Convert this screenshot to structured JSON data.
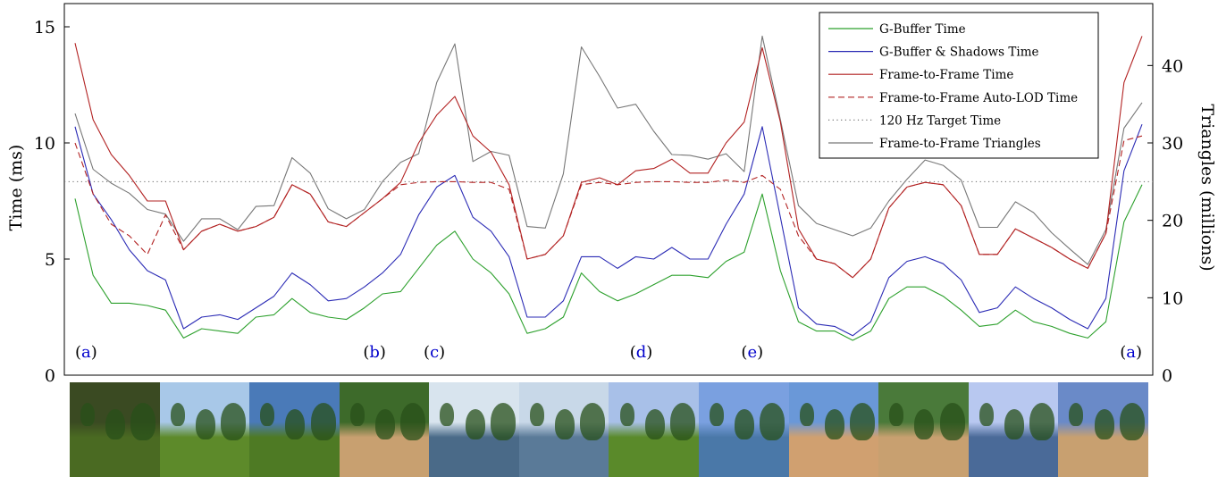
{
  "chart_data": {
    "type": "line",
    "xlabel": "",
    "ylabel": "Time (ms)",
    "y2label": "Triangles (millions)",
    "ylim": [
      0,
      16
    ],
    "y2lim": [
      0,
      48
    ],
    "yticks": [
      0,
      5,
      10,
      15
    ],
    "y2ticks": [
      0,
      10,
      20,
      30,
      40
    ],
    "grid": false,
    "legend_position": "top-right",
    "series": [
      {
        "name": "G-Buffer Time",
        "axis": "left",
        "color": "#2ca02c",
        "dash": "solid",
        "values": [
          7.6,
          4.3,
          3.1,
          3.1,
          3.0,
          2.8,
          1.6,
          2.0,
          1.9,
          1.8,
          2.5,
          2.6,
          3.3,
          2.7,
          2.5,
          2.4,
          2.9,
          3.5,
          3.6,
          4.6,
          5.6,
          6.2,
          5.0,
          4.4,
          3.5,
          1.8,
          2.0,
          2.5,
          4.4,
          3.6,
          3.2,
          3.5,
          3.9,
          4.3,
          4.3,
          4.2,
          4.9,
          5.3,
          7.8,
          4.5,
          2.3,
          1.9,
          1.9,
          1.5,
          1.9,
          3.3,
          3.8,
          3.8,
          3.4,
          2.8,
          2.1,
          2.2,
          2.8,
          2.3,
          2.1,
          1.8,
          1.6,
          2.3,
          6.6,
          8.2
        ]
      },
      {
        "name": "G-Buffer & Shadows Time",
        "axis": "left",
        "color": "#2b2bb5",
        "dash": "solid",
        "values": [
          10.7,
          7.8,
          6.7,
          5.4,
          4.5,
          4.1,
          2.0,
          2.5,
          2.6,
          2.4,
          2.9,
          3.4,
          4.4,
          3.9,
          3.2,
          3.3,
          3.8,
          4.4,
          5.2,
          6.9,
          8.1,
          8.6,
          6.8,
          6.2,
          5.1,
          2.5,
          2.5,
          3.2,
          5.1,
          5.1,
          4.6,
          5.1,
          5.0,
          5.5,
          5.0,
          5.0,
          6.5,
          7.8,
          10.7,
          6.8,
          2.9,
          2.2,
          2.1,
          1.7,
          2.3,
          4.2,
          4.9,
          5.1,
          4.8,
          4.1,
          2.7,
          2.9,
          3.8,
          3.3,
          2.9,
          2.4,
          2.0,
          3.3,
          8.8,
          10.8
        ]
      },
      {
        "name": "Frame-to-Frame Time",
        "axis": "left",
        "color": "#b22222",
        "dash": "solid",
        "values": [
          14.3,
          11.0,
          9.5,
          8.6,
          7.5,
          7.5,
          5.4,
          6.2,
          6.5,
          6.2,
          6.4,
          6.8,
          8.2,
          7.8,
          6.6,
          6.4,
          7.0,
          7.6,
          8.3,
          10.0,
          11.2,
          12.0,
          10.3,
          9.6,
          8.2,
          5.0,
          5.2,
          6.0,
          8.3,
          8.5,
          8.2,
          8.8,
          8.9,
          9.3,
          8.7,
          8.7,
          10.0,
          10.9,
          14.1,
          10.9,
          6.3,
          5.0,
          4.8,
          4.2,
          5.0,
          7.2,
          8.1,
          8.3,
          8.2,
          7.3,
          5.2,
          5.2,
          6.3,
          5.9,
          5.5,
          5.0,
          4.6,
          6.1,
          12.6,
          14.6
        ]
      },
      {
        "name": "Frame-to-Frame Auto-LOD Time",
        "axis": "left",
        "color": "#b22222",
        "dash": "dashed",
        "values": [
          10.0,
          7.8,
          6.5,
          6.0,
          5.2,
          6.9,
          5.4,
          6.2,
          6.5,
          6.2,
          6.4,
          6.8,
          8.2,
          7.8,
          6.6,
          6.4,
          7.0,
          7.6,
          8.2,
          8.3,
          8.33,
          8.33,
          8.3,
          8.3,
          8.0,
          5.0,
          5.2,
          6.0,
          8.2,
          8.3,
          8.2,
          8.3,
          8.33,
          8.33,
          8.3,
          8.3,
          8.4,
          8.3,
          8.6,
          8.0,
          6.0,
          5.0,
          4.8,
          4.2,
          5.0,
          7.2,
          8.1,
          8.3,
          8.2,
          7.3,
          5.2,
          5.2,
          6.3,
          5.9,
          5.5,
          5.0,
          4.6,
          6.1,
          10.1,
          10.3
        ]
      },
      {
        "name": "120 Hz Target Time",
        "axis": "left",
        "color": "#777777",
        "dash": "dotted",
        "values": [
          8.33,
          8.33
        ]
      },
      {
        "name": "Frame-to-Frame Triangles",
        "axis": "right",
        "color": "#777777",
        "dash": "solid",
        "values": [
          33.8,
          26.6,
          24.8,
          23.5,
          21.4,
          20.8,
          17.3,
          20.2,
          20.2,
          18.8,
          21.8,
          21.9,
          28.1,
          26.1,
          21.5,
          20.2,
          21.4,
          25.0,
          27.5,
          28.6,
          37.8,
          42.8,
          27.6,
          28.9,
          28.4,
          19.2,
          19.0,
          26.0,
          42.4,
          38.6,
          34.5,
          35.0,
          31.5,
          28.5,
          28.4,
          27.9,
          28.6,
          26.3,
          43.8,
          33.0,
          21.9,
          19.6,
          18.8,
          18.0,
          19.0,
          22.5,
          25.3,
          27.8,
          27.1,
          25.2,
          19.1,
          19.1,
          22.4,
          21.0,
          18.4,
          16.3,
          14.3,
          18.8,
          31.9,
          35.2
        ]
      }
    ],
    "markers": [
      {
        "label": "(a)",
        "pos": 0.02
      },
      {
        "label": "(b)",
        "pos": 0.285
      },
      {
        "label": "(c)",
        "pos": 0.34
      },
      {
        "label": "(d)",
        "pos": 0.53
      },
      {
        "label": "(e)",
        "pos": 0.632
      },
      {
        "label": "(a)",
        "pos": 0.98
      }
    ]
  },
  "thumbnails": [
    {
      "name": "forest-bench",
      "sky": "#3a4a22",
      "ground": "#4a6a22"
    },
    {
      "name": "park-trees",
      "sky": "#a8c8e8",
      "ground": "#5d8a2a"
    },
    {
      "name": "park-wall",
      "sky": "#4a7ab8",
      "ground": "#4e7a24"
    },
    {
      "name": "path-corner",
      "sky": "#3d6a2a",
      "ground": "#c8a070"
    },
    {
      "name": "lake-blossom",
      "sky": "#d8e4ee",
      "ground": "#4a6a88"
    },
    {
      "name": "snowy-lake",
      "sky": "#c8d8e8",
      "ground": "#5a7a98"
    },
    {
      "name": "park-hill",
      "sky": "#a8c0e8",
      "ground": "#5a8a2a"
    },
    {
      "name": "lake-trees",
      "sky": "#7aa0e0",
      "ground": "#4a78a8"
    },
    {
      "name": "bench-sand",
      "sky": "#6a98d8",
      "ground": "#d0a070"
    },
    {
      "name": "path-grass",
      "sky": "#4a7a3a",
      "ground": "#c8a070"
    },
    {
      "name": "pond-sky",
      "sky": "#b8c8f0",
      "ground": "#4a6a98"
    },
    {
      "name": "hedge-path",
      "sky": "#6a8ac8",
      "ground": "#c8a070"
    }
  ]
}
